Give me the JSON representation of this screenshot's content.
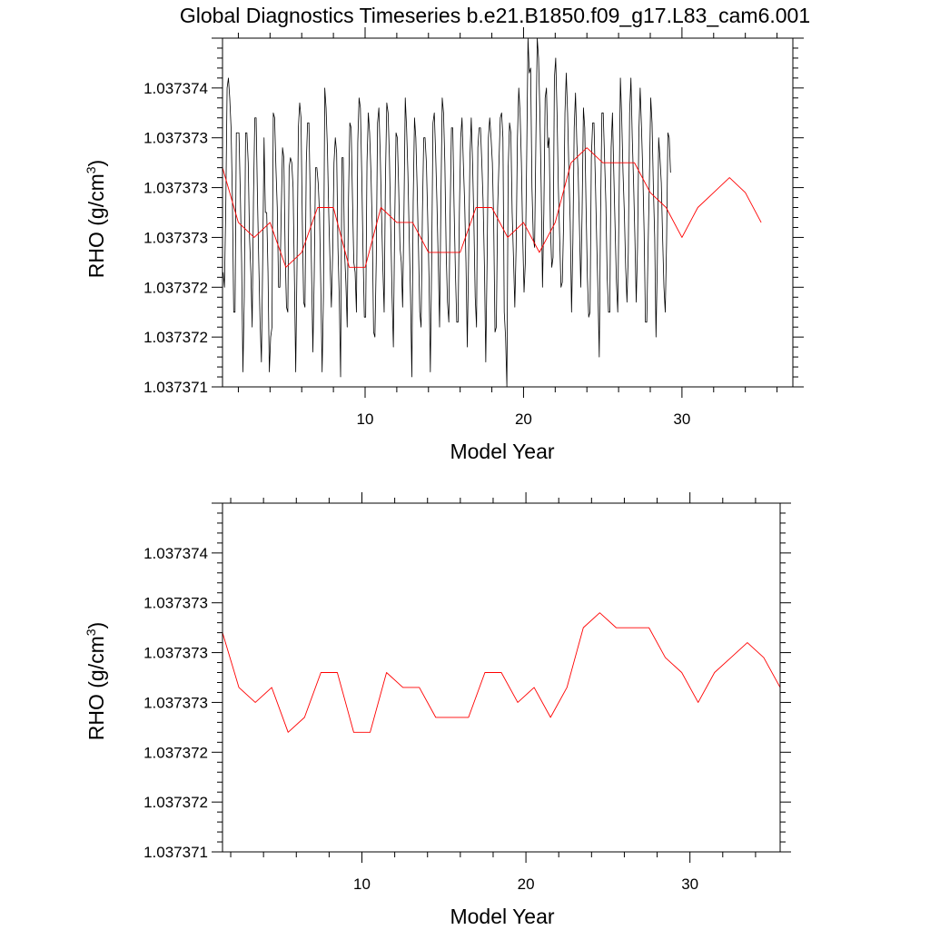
{
  "title": "Global Diagnostics Timeseries b.e21.B1850.f09_g17.L83_cam6.001",
  "colors": {
    "monthly": "#000000",
    "annual": "#ff0000",
    "axes": "#000000"
  },
  "chart_data": [
    {
      "type": "line",
      "ylabel": "RHO (g/cm",
      "ylabel_sup": "3",
      "ylabel_close": ")",
      "xlabel": "Model Year",
      "xlim": [
        1,
        37
      ],
      "ylim": [
        0,
        7
      ],
      "x_ticks": [
        10,
        20,
        30
      ],
      "x_tick_labels": [
        "10",
        "20",
        "30"
      ],
      "y_ticks": [
        0,
        1,
        2,
        3,
        4,
        5,
        6
      ],
      "y_tick_labels": [
        "1.037371",
        "1.037372",
        "1.037372",
        "1.037373",
        "1.037373",
        "1.037373",
        "1.037374"
      ],
      "series": [
        {
          "name": "monthly",
          "color": "#000000",
          "x_start": 1.04,
          "x_step": 0.0833,
          "values": [
            2.3,
            2.0,
            3.6,
            6.0,
            6.2,
            5.8,
            5.2,
            3.8,
            1.5,
            1.5,
            5.1,
            5.1,
            5.1,
            3.9,
            2.5,
            0.3,
            1.8,
            5.1,
            5.1,
            4.5,
            3.0,
            2.3,
            1.2,
            3.8,
            5.4,
            5.4,
            3.8,
            2.5,
            1.3,
            0.5,
            2.6,
            5.0,
            3.5,
            3.5,
            2.3,
            0.3,
            1.0,
            1.2,
            5.5,
            5.4,
            4.4,
            3.6,
            2.0,
            2.0,
            3.5,
            4.8,
            4.6,
            2.7,
            1.6,
            1.5,
            4.4,
            4.6,
            4.5,
            4.0,
            2.2,
            0.3,
            2.5,
            5.2,
            5.7,
            5.4,
            3.3,
            1.7,
            1.6,
            4.5,
            5.3,
            5.3,
            3.8,
            2.3,
            0.7,
            2.2,
            4.4,
            4.4,
            4.1,
            3.5,
            2.0,
            0.3,
            1.8,
            6.0,
            5.6,
            4.8,
            3.5,
            2.5,
            1.6,
            2.7,
            4.5,
            5.0,
            4.7,
            2.8,
            1.8,
            0.2,
            4.6,
            4.6,
            2.7,
            2.1,
            1.2,
            3.8,
            5.3,
            5.2,
            3.8,
            2.5,
            2.3,
            1.5,
            4.9,
            5.8,
            5.6,
            4.3,
            2.7,
            1.4,
            1.4,
            4.5,
            5.5,
            5.1,
            4.3,
            3.2,
            1.1,
            1.0,
            2.5,
            5.3,
            5.6,
            4.7,
            3.5,
            2.4,
            1.5,
            4.2,
            5.7,
            5.5,
            4.6,
            3.2,
            1.8,
            0.8,
            3.3,
            5.1,
            5.0,
            4.0,
            2.8,
            2.5,
            1.6,
            3.5,
            5.8,
            5.2,
            4.3,
            3.0,
            1.8,
            0.2,
            3.7,
            5.4,
            5.0,
            4.0,
            2.8,
            1.5,
            1.2,
            3.5,
            5.0,
            5.0,
            4.5,
            3.4,
            2.2,
            0.3,
            2.5,
            5.3,
            5.5,
            4.7,
            3.7,
            2.5,
            1.2,
            3.7,
            5.8,
            5.5,
            4.5,
            2.7,
            1.7,
            1.3,
            3.5,
            5.2,
            5.2,
            3.6,
            2.3,
            1.3,
            1.3,
            3.5,
            5.0,
            5.4,
            4.5,
            3.7,
            2.5,
            0.8,
            2.6,
            4.6,
            5.4,
            4.5,
            3.3,
            1.8,
            1.2,
            4.8,
            5.2,
            5.2,
            4.5,
            3.7,
            2.4,
            0.5,
            2.5,
            5.0,
            5.4,
            5.0,
            4.5,
            3.3,
            1.1,
            1.2,
            3.6,
            4.5,
            5.4,
            5.5,
            5.0,
            1.5,
            1.0,
            0.0,
            4.4,
            5.3,
            5.1,
            3.5,
            2.6,
            1.6,
            2.8,
            5.0,
            6.0,
            5.5,
            4.5,
            3.0,
            1.9,
            2.5,
            4.6,
            7.0,
            6.3,
            6.4,
            4.0,
            3.0,
            2.8,
            5.0,
            7.0,
            6.6,
            5.5,
            4.0,
            2.0,
            3.5,
            5.8,
            6.0,
            4.8,
            5.0,
            3.2,
            2.4,
            2.6,
            6.2,
            6.6,
            5.5,
            4.0,
            3.0,
            2.0,
            2.1,
            3.3,
            5.5,
            6.3,
            5.5,
            4.3,
            3.3,
            1.5,
            2.9,
            5.2,
            5.9,
            4.9,
            4.3,
            3.2,
            2.0,
            3.5,
            5.6,
            5.2,
            3.6,
            2.2,
            1.4,
            1.5,
            4.6,
            5.3,
            5.3,
            4.2,
            3.0,
            1.9,
            0.6,
            3.5,
            5.5,
            5.5,
            4.6,
            3.7,
            2.2,
            1.5,
            1.5,
            4.8,
            5.5,
            4.3,
            3.2,
            2.1,
            1.5,
            3.7,
            6.2,
            5.4,
            4.3,
            3.5,
            2.4,
            1.7,
            2.7,
            5.5,
            6.2,
            5.0,
            4.1,
            3.0,
            1.7,
            2.8,
            5.1,
            6.0,
            5.2,
            4.3,
            3.1,
            1.3,
            1.3,
            2.8,
            4.2,
            5.8,
            5.3,
            4.0,
            3.0,
            1.0,
            2.5,
            5.0,
            4.6,
            4.1,
            3.0,
            2.0,
            1.5,
            2.9,
            5.1,
            5.0,
            4.3
          ]
        },
        {
          "name": "annual",
          "color": "#ff0000",
          "x_start": 1,
          "x_step": 1,
          "values": [
            4.4,
            3.3,
            3.0,
            3.3,
            2.4,
            2.7,
            3.6,
            3.6,
            2.4,
            2.4,
            3.6,
            3.3,
            3.3,
            2.7,
            2.7,
            2.7,
            3.6,
            3.6,
            3.0,
            3.3,
            2.7,
            3.3,
            4.5,
            4.8,
            4.5,
            4.5,
            4.5,
            3.9,
            3.6,
            3.0,
            3.6,
            3.9,
            4.2,
            3.9,
            3.3
          ]
        }
      ]
    },
    {
      "type": "line",
      "ylabel": "RHO (g/cm",
      "ylabel_sup": "3",
      "ylabel_close": ")",
      "xlabel": "Model Year",
      "xlim": [
        1.5,
        35.5
      ],
      "ylim": [
        0,
        7
      ],
      "x_ticks": [
        10,
        20,
        30
      ],
      "x_tick_labels": [
        "10",
        "20",
        "30"
      ],
      "y_ticks": [
        0,
        1,
        2,
        3,
        4,
        5,
        6
      ],
      "y_tick_labels": [
        "1.037371",
        "1.037372",
        "1.037372",
        "1.037373",
        "1.037373",
        "1.037373",
        "1.037374"
      ],
      "series": [
        {
          "name": "annual",
          "color": "#ff0000",
          "x_start": 1.5,
          "x_step": 1,
          "values": [
            4.4,
            3.3,
            3.0,
            3.3,
            2.4,
            2.7,
            3.6,
            3.6,
            2.4,
            2.4,
            3.6,
            3.3,
            3.3,
            2.7,
            2.7,
            2.7,
            3.6,
            3.6,
            3.0,
            3.3,
            2.7,
            3.3,
            4.5,
            4.8,
            4.5,
            4.5,
            4.5,
            3.9,
            3.6,
            3.0,
            3.6,
            3.9,
            4.2,
            3.9,
            3.3
          ]
        }
      ]
    }
  ]
}
